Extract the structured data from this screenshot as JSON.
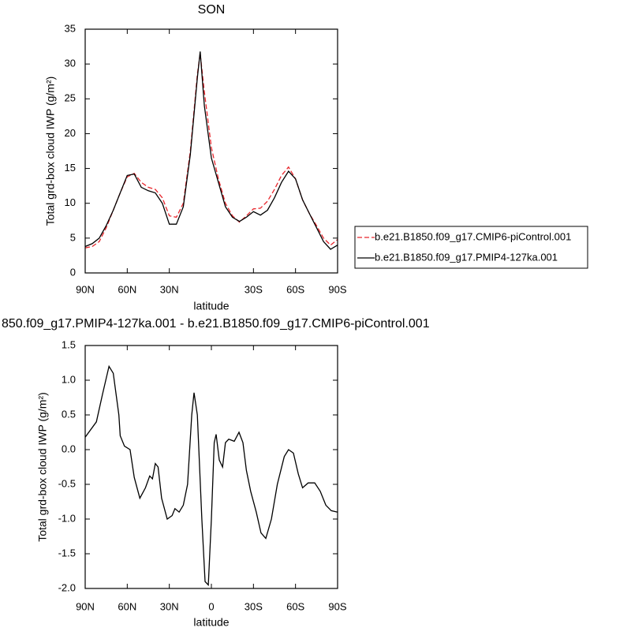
{
  "chart_data": [
    {
      "type": "line",
      "title": "SON",
      "xlabel": "latitude",
      "ylabel": "Total grd-box cloud IWP (g/m²)",
      "x": [
        90,
        85,
        80,
        75,
        70,
        65,
        60,
        55,
        50,
        45,
        40,
        35,
        30,
        25,
        20,
        15,
        10,
        8,
        5,
        0,
        -5,
        -10,
        -15,
        -20,
        -25,
        -30,
        -35,
        -40,
        -45,
        -50,
        -55,
        -60,
        -65,
        -70,
        -75,
        -80,
        -85,
        -90
      ],
      "series": [
        {
          "name": "b.e21.B1850.f09_g17.CMIP6-piControl.001",
          "color": "#e8262c",
          "dash": true,
          "values": [
            3.6,
            3.8,
            4.5,
            6.5,
            9.0,
            11.5,
            13.8,
            14.3,
            13.0,
            12.3,
            12.0,
            10.8,
            8.2,
            8.0,
            10.0,
            17.5,
            28.5,
            31.5,
            26.0,
            18.0,
            13.5,
            10.0,
            8.2,
            7.3,
            8.2,
            9.2,
            9.3,
            10.3,
            12.0,
            14.0,
            15.2,
            13.5,
            10.5,
            8.5,
            6.8,
            5.0,
            4.0,
            4.8
          ]
        },
        {
          "name": "b.e21.B1850.f09_g17.PMIP4-127ka.001",
          "color": "#000000",
          "dash": false,
          "values": [
            3.8,
            4.2,
            5.0,
            6.8,
            9.0,
            11.5,
            14.0,
            14.2,
            12.3,
            11.8,
            11.5,
            10.0,
            7.0,
            7.0,
            9.5,
            17.0,
            28.0,
            31.8,
            24.0,
            16.5,
            13.0,
            9.5,
            8.0,
            7.4,
            8.0,
            8.8,
            8.3,
            9.0,
            10.8,
            13.0,
            14.6,
            13.5,
            10.5,
            8.5,
            6.5,
            4.5,
            3.4,
            4.0
          ]
        }
      ],
      "xlim": [
        90,
        -90
      ],
      "xticks": [
        {
          "value": 90,
          "label": "90N"
        },
        {
          "value": 60,
          "label": "60N"
        },
        {
          "value": 30,
          "label": "30N"
        },
        {
          "value": -30,
          "label": "30S"
        },
        {
          "value": -60,
          "label": "60S"
        },
        {
          "value": -90,
          "label": "90S"
        }
      ],
      "ylim": [
        0,
        35
      ],
      "yticks": [
        0,
        5,
        10,
        15,
        20,
        25,
        30,
        35
      ]
    },
    {
      "type": "line",
      "title": "850.f09_g17.PMIP4-127ka.001 - b.e21.B1850.f09_g17.CMIP6-piControl.001",
      "xlabel": "latitude",
      "ylabel": "Total grd-box cloud IWP (g/m²)",
      "x": [
        90,
        82,
        77.6,
        73,
        70,
        66,
        65,
        62,
        58,
        55,
        51,
        47,
        44,
        42,
        40,
        38,
        35.5,
        31.5,
        28,
        26,
        23,
        20,
        17,
        14,
        12.4,
        10,
        6.8,
        4.5,
        2.2,
        0,
        -2,
        -3.4,
        -5.6,
        -8,
        -10,
        -12.4,
        -16.3,
        -19.7,
        -22.5,
        -25,
        -28,
        -32,
        -35.4,
        -38.8,
        -42.8,
        -47,
        -52,
        -55,
        -58.5,
        -62,
        -65,
        -69,
        -73.7,
        -77.6,
        -81.6,
        -85.5,
        -90
      ],
      "color": "#000000",
      "values": [
        0.18,
        0.4,
        0.8,
        1.2,
        1.1,
        0.5,
        0.2,
        0.05,
        0.0,
        -0.4,
        -0.7,
        -0.55,
        -0.38,
        -0.42,
        -0.2,
        -0.25,
        -0.7,
        -1.0,
        -0.95,
        -0.85,
        -0.9,
        -0.8,
        -0.5,
        0.5,
        0.82,
        0.5,
        -1.0,
        -1.9,
        -1.95,
        -1.0,
        0.1,
        0.22,
        -0.15,
        -0.25,
        0.1,
        0.15,
        0.12,
        0.25,
        0.1,
        -0.3,
        -0.6,
        -0.9,
        -1.2,
        -1.28,
        -1.0,
        -0.5,
        -0.1,
        0.0,
        -0.05,
        -0.35,
        -0.55,
        -0.48,
        -0.48,
        -0.6,
        -0.8,
        -0.88,
        -0.9
      ],
      "xlim": [
        90,
        -90
      ],
      "xticks": [
        {
          "value": 90,
          "label": "90N"
        },
        {
          "value": 60,
          "label": "60N"
        },
        {
          "value": 30,
          "label": "30N"
        },
        0,
        {
          "value": -30,
          "label": "30S"
        },
        {
          "value": -60,
          "label": "60S"
        },
        {
          "value": -90,
          "label": "90S"
        }
      ],
      "ylim": [
        -2.0,
        1.5
      ],
      "yticks": [
        {
          "value": -2.0,
          "label": "-2.0"
        },
        -1.5,
        {
          "value": -1.0,
          "label": "-1.0"
        },
        -0.5,
        {
          "value": 0.0,
          "label": "0.0"
        },
        0.5,
        {
          "value": 1.0,
          "label": "1.0"
        },
        1.5
      ]
    }
  ]
}
